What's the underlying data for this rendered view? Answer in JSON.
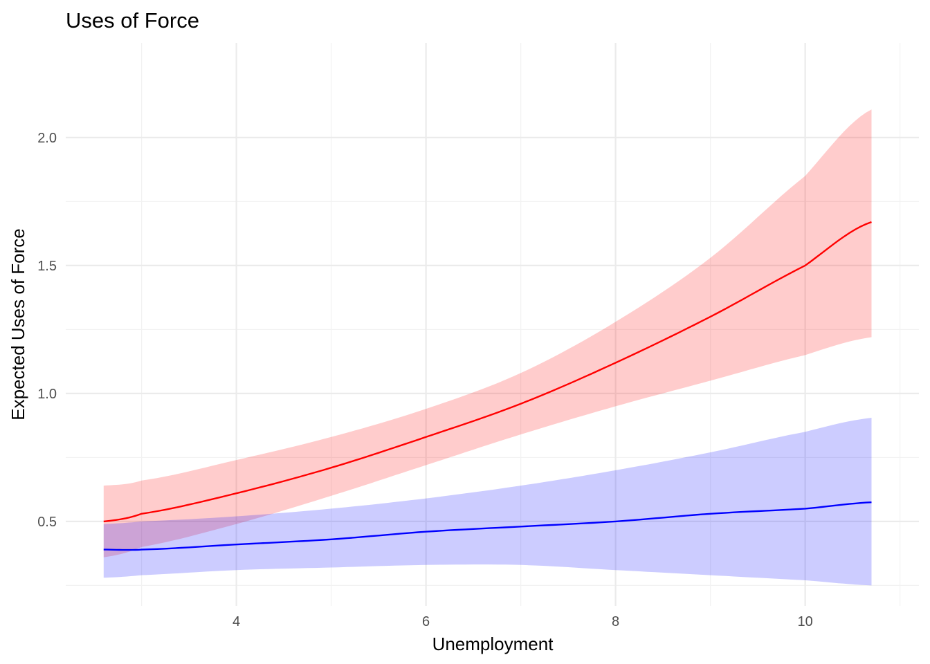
{
  "chart_data": {
    "type": "line",
    "title": "Uses of Force",
    "xlabel": "Unemployment",
    "ylabel": "Expected Uses of Force",
    "xlim": [
      2.2,
      11.2
    ],
    "ylim": [
      0.17,
      2.37
    ],
    "x_ticks": [
      4,
      6,
      8,
      10
    ],
    "x_minor_ticks": [
      3,
      5,
      7,
      9,
      11
    ],
    "y_ticks": [
      0.5,
      1.0,
      1.5,
      2.0
    ],
    "y_tick_labels": [
      "0.5",
      "1.0",
      "1.5",
      "2.0"
    ],
    "y_minor_ticks": [
      0.25,
      0.75,
      1.25,
      1.75
    ],
    "grid": true,
    "legend": "none",
    "x": [
      2.6,
      3.0,
      4.0,
      5.0,
      6.0,
      7.0,
      8.0,
      9.0,
      10.0,
      10.7
    ],
    "series": [
      {
        "color": "#ff0000",
        "band_color": "#ff0000",
        "band_opacity": 0.2,
        "values": [
          0.5,
          0.53,
          0.61,
          0.71,
          0.83,
          0.96,
          1.12,
          1.3,
          1.5,
          1.67
        ],
        "lower": [
          0.36,
          0.4,
          0.49,
          0.6,
          0.72,
          0.84,
          0.95,
          1.05,
          1.15,
          1.22
        ],
        "upper": [
          0.64,
          0.66,
          0.74,
          0.83,
          0.94,
          1.08,
          1.28,
          1.53,
          1.85,
          2.11
        ]
      },
      {
        "color": "#0000ff",
        "band_color": "#0000ff",
        "band_opacity": 0.2,
        "values": [
          0.39,
          0.39,
          0.41,
          0.43,
          0.46,
          0.48,
          0.5,
          0.53,
          0.55,
          0.575
        ],
        "lower": [
          0.28,
          0.29,
          0.31,
          0.32,
          0.33,
          0.33,
          0.31,
          0.29,
          0.27,
          0.25
        ],
        "upper": [
          0.49,
          0.5,
          0.52,
          0.55,
          0.59,
          0.64,
          0.7,
          0.77,
          0.85,
          0.905
        ]
      }
    ]
  }
}
